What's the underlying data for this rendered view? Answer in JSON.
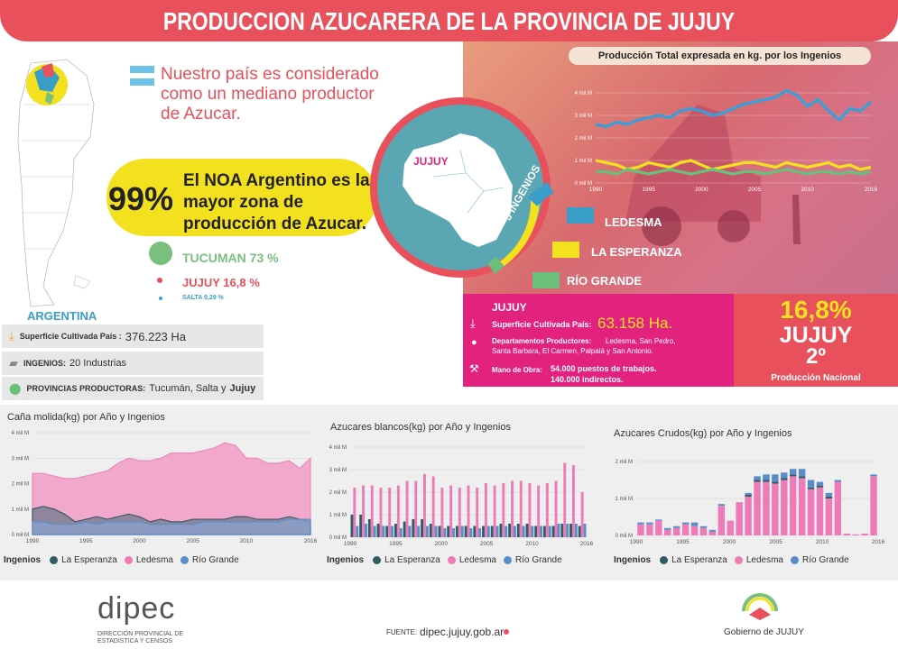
{
  "header": {
    "title": "PRODUCCION AZUCARERA DE LA PROVINCIA DE JUJUY"
  },
  "intro": {
    "text": "Nuestro país es considerado como un mediano productor de Azucar."
  },
  "noa": {
    "pct": "99%",
    "text": "El NOA Argentino es la mayor zona de producción de Azucar."
  },
  "provinces": [
    {
      "label": "TUCUMAN 73 %",
      "color": "#7bbf7e"
    },
    {
      "label": "JUJUY  16,8 %",
      "color": "#e8505b"
    },
    {
      "label": "SALTA 9,29 %",
      "color": "#3a9fc8"
    }
  ],
  "argentina": {
    "title": "ARGENTINA",
    "rows": [
      {
        "label": "Superficie Cultivada País :",
        "value": "376.223 Ha"
      },
      {
        "label": "INGENIOS:",
        "value": "20 Industrias"
      },
      {
        "label": "PROVINCIAS PRODUCTORAS:",
        "value": "Tucumán, Salta y",
        "bold": "Jujuy"
      }
    ]
  },
  "map": {
    "label": "JUJUY",
    "ring_label": "3 INGENIOS"
  },
  "ingenios": [
    "LEDESMA",
    "LA ESPERANZA",
    "RÍO GRANDE"
  ],
  "jujuy": {
    "title": "JUJUY",
    "sup_label": "Superficie Cultivada País:",
    "sup_value": "63.158 Ha.",
    "dep_label": "Departamentos Productores:",
    "dep_value": "Ledesma, San Pedro, Santa Barbara, El Carmen, Palpalá y San Antonio.",
    "mano_label": "Mano de Obra:",
    "mano_value1": "54.000 puestos de trabajos.",
    "mano_value2": "140.000 indirectos."
  },
  "national": {
    "pct": "16,8%",
    "name": "JUJUY",
    "rank": "2º",
    "label": "Producción Nacional"
  },
  "legend_label": "Ingenios",
  "legend_items": [
    {
      "name": "La Esperanza",
      "color": "#2f5d63"
    },
    {
      "name": "Ledesma",
      "color": "#ef7ab8"
    },
    {
      "name": "Río Grande",
      "color": "#5b8ec9"
    }
  ],
  "footer": {
    "logo": "dipec",
    "logo_sub1": "DIRECCIÓN PROVINCIAL DE",
    "logo_sub2": "ESTADISTICA Y CENSOS",
    "fuente_label": "FUENTE:",
    "fuente_value": "dipec.jujuy.gob.ar",
    "gobierno": "Gobierno de JUJUY"
  },
  "chart_data": [
    {
      "type": "line",
      "title": "Producción Total expresada en kg. por los Ingenios",
      "ylim": [
        0,
        4
      ],
      "ytick_labels": [
        "0 mil M",
        "1 mil M",
        "2 mil M",
        "3 mil M",
        "4 mil M"
      ],
      "xtick_labels": [
        "1990",
        "1995",
        "2000",
        "2005",
        "2010",
        "2016"
      ],
      "x": [
        1990,
        1991,
        1992,
        1993,
        1994,
        1995,
        1996,
        1997,
        1998,
        1999,
        2000,
        2001,
        2002,
        2003,
        2004,
        2005,
        2006,
        2007,
        2008,
        2009,
        2010,
        2011,
        2012,
        2013,
        2014,
        2015,
        2016
      ],
      "series": [
        {
          "color": "#3a9fd8",
          "values": [
            2.6,
            2.5,
            2.7,
            2.6,
            2.8,
            2.9,
            3.0,
            2.9,
            3.2,
            3.3,
            3.2,
            3.0,
            3.1,
            3.3,
            3.5,
            3.6,
            3.7,
            3.8,
            4.1,
            3.9,
            3.4,
            3.7,
            3.2,
            2.8,
            3.3,
            3.2,
            3.6
          ]
        },
        {
          "color": "#f3e01e",
          "values": [
            1.0,
            0.9,
            0.8,
            0.6,
            0.7,
            0.9,
            0.8,
            0.7,
            0.9,
            1.0,
            0.8,
            0.6,
            0.7,
            0.8,
            0.9,
            0.9,
            0.8,
            0.7,
            0.9,
            0.8,
            0.7,
            0.8,
            0.9,
            0.7,
            0.8,
            0.6,
            0.7
          ]
        },
        {
          "color": "#6bbf7a",
          "values": [
            0.5,
            0.5,
            0.4,
            0.6,
            0.5,
            0.4,
            0.5,
            0.6,
            0.5,
            0.4,
            0.5,
            0.6,
            0.5,
            0.4,
            0.5,
            0.5,
            0.4,
            0.5,
            0.6,
            0.5,
            0.4,
            0.5,
            0.5,
            0.4,
            0.5,
            0.4,
            0.5
          ]
        }
      ]
    },
    {
      "type": "area",
      "title": "Caña molida(kg) por Año y Ingenios",
      "ylim": [
        0,
        4
      ],
      "ytick_labels": [
        "0 mil M",
        "1 mil M",
        "2 mil M",
        "3 mil M",
        "4 mil M"
      ],
      "xtick_labels": [
        "1990",
        "1995",
        "2000",
        "2005",
        "2010",
        "2016"
      ],
      "x": [
        1990,
        1991,
        1992,
        1993,
        1994,
        1995,
        1996,
        1997,
        1998,
        1999,
        2000,
        2001,
        2002,
        2003,
        2004,
        2005,
        2006,
        2007,
        2008,
        2009,
        2010,
        2011,
        2012,
        2013,
        2014,
        2015,
        2016
      ],
      "series": [
        {
          "name": "Ledesma",
          "values": [
            2.4,
            2.4,
            2.3,
            2.2,
            2.2,
            2.3,
            2.4,
            2.5,
            2.8,
            3.0,
            2.9,
            2.9,
            3.0,
            3.2,
            3.2,
            3.2,
            3.3,
            3.4,
            3.6,
            3.5,
            3.0,
            3.0,
            2.8,
            2.8,
            2.9,
            2.6,
            3.0
          ]
        },
        {
          "name": "La Esperanza",
          "values": [
            1.0,
            1.1,
            1.0,
            0.8,
            0.5,
            0.6,
            0.7,
            0.6,
            0.7,
            0.8,
            0.7,
            0.5,
            0.6,
            0.5,
            0.5,
            0.6,
            0.6,
            0.6,
            0.6,
            0.7,
            0.7,
            0.6,
            0.6,
            0.6,
            0.7,
            0.6,
            0.5
          ]
        },
        {
          "name": "Río Grande",
          "values": [
            0.5,
            0.5,
            0.4,
            0.4,
            0.4,
            0.5,
            0.4,
            0.5,
            0.5,
            0.5,
            0.5,
            0.4,
            0.4,
            0.4,
            0.4,
            0.4,
            0.5,
            0.5,
            0.5,
            0.5,
            0.5,
            0.5,
            0.5,
            0.5,
            0.6,
            0.6,
            0.6
          ]
        }
      ]
    },
    {
      "type": "bar",
      "title": "Azucares blancos(kg) por Año y Ingenios",
      "ylim": [
        0,
        4
      ],
      "ytick_labels": [
        "0 mil M",
        "1 mil M",
        "2 mil M",
        "3 mil M",
        "4 mil M"
      ],
      "xtick_labels": [
        "1990",
        "1995",
        "2000",
        "2005",
        "2010",
        "2016"
      ],
      "x": [
        1990,
        1991,
        1992,
        1993,
        1994,
        1995,
        1996,
        1997,
        1998,
        1999,
        2000,
        2001,
        2002,
        2003,
        2004,
        2005,
        2006,
        2007,
        2008,
        2009,
        2010,
        2011,
        2012,
        2013,
        2014,
        2015,
        2016
      ],
      "series": [
        {
          "name": "Ledesma",
          "values": [
            2.2,
            2.3,
            2.3,
            2.2,
            2.2,
            2.3,
            2.5,
            2.5,
            2.8,
            2.7,
            2.2,
            2.3,
            2.2,
            2.3,
            2.2,
            2.4,
            2.3,
            2.4,
            2.5,
            2.5,
            2.4,
            2.3,
            2.4,
            2.5,
            3.3,
            3.2,
            2.0
          ]
        },
        {
          "name": "La Esperanza",
          "values": [
            1.0,
            1.0,
            0.8,
            0.6,
            0.5,
            0.6,
            0.7,
            0.8,
            0.8,
            0.6,
            0.5,
            0.5,
            0.5,
            0.5,
            0.5,
            0.5,
            0.5,
            0.6,
            0.6,
            0.6,
            0.6,
            0.5,
            0.5,
            0.5,
            0.6,
            0.6,
            0.5
          ]
        },
        {
          "name": "Río Grande",
          "values": [
            0.5,
            0.6,
            0.5,
            0.5,
            0.5,
            0.4,
            0.5,
            0.5,
            0.5,
            0.5,
            0.4,
            0.4,
            0.5,
            0.4,
            0.4,
            0.5,
            0.5,
            0.5,
            0.5,
            0.5,
            0.5,
            0.5,
            0.5,
            0.6,
            0.6,
            0.6,
            0.6
          ]
        }
      ]
    },
    {
      "type": "bar",
      "title": "Azucares Crudos(kg) por Año y Ingenios",
      "ylim": [
        0,
        2
      ],
      "ytick_labels": [
        "0 mil M",
        "1 mil M",
        "2 mil M"
      ],
      "xtick_labels": [
        "1990",
        "1995",
        "2000",
        "2005",
        "2010",
        "2016"
      ],
      "x": [
        1990,
        1991,
        1992,
        1993,
        1994,
        1995,
        1996,
        1997,
        1998,
        1999,
        2000,
        2001,
        2002,
        2003,
        2004,
        2005,
        2006,
        2007,
        2008,
        2009,
        2010,
        2011,
        2012,
        2013,
        2014,
        2015,
        2016
      ],
      "series": [
        {
          "name": "Ledesma",
          "values": [
            0.3,
            0.3,
            0.4,
            0.15,
            0.2,
            0.3,
            0.25,
            0.2,
            0.1,
            0.8,
            0.4,
            0.9,
            1.05,
            1.45,
            1.45,
            1.4,
            1.5,
            1.6,
            1.55,
            1.25,
            1.3,
            1.0,
            1.45,
            0.05,
            0.03,
            0.05,
            1.6
          ]
        },
        {
          "name": "La Esperanza",
          "values": [
            0,
            0,
            0,
            0,
            0,
            0,
            0,
            0,
            0,
            0,
            0,
            0,
            0.05,
            0.05,
            0.05,
            0.05,
            0.05,
            0.05,
            0.05,
            0.05,
            0.05,
            0.05,
            0,
            0,
            0,
            0,
            0
          ]
        },
        {
          "name": "Río Grande",
          "values": [
            0.05,
            0.05,
            0.03,
            0.05,
            0.05,
            0.05,
            0.1,
            0.05,
            0.05,
            0.05,
            0,
            0,
            0.05,
            0.1,
            0.15,
            0.2,
            0.15,
            0.15,
            0.2,
            0.2,
            0.1,
            0.1,
            0.05,
            0,
            0,
            0,
            0.05
          ]
        }
      ]
    }
  ]
}
